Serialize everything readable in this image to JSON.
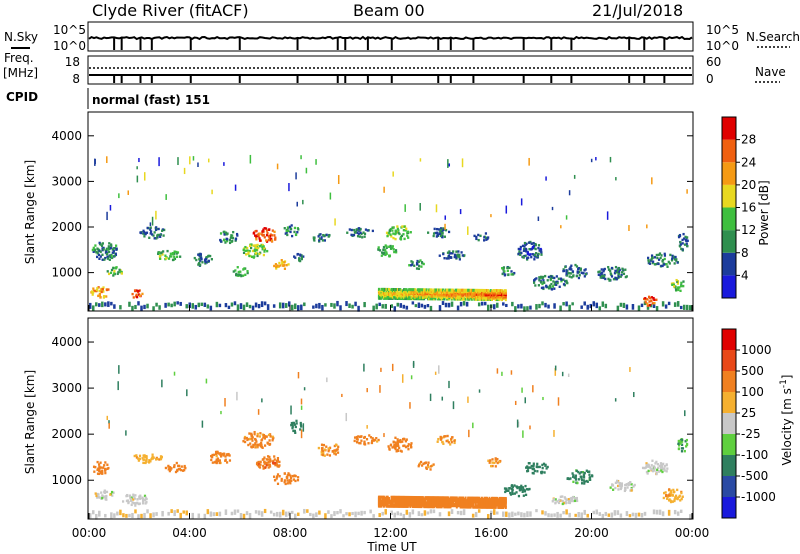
{
  "header": {
    "title": "Clyde River (fitACF)",
    "beam": "Beam 00",
    "date": "21/Jul/2018"
  },
  "strip1": {
    "left_label": "N.Sky",
    "right_label": "N.Search",
    "left_ticks": [
      "10^5",
      "10^0"
    ],
    "right_ticks": [
      "10^5",
      "10^0"
    ]
  },
  "strip2": {
    "left_label": "Freq.",
    "left_unit": "[MHz]",
    "right_label": "Nave",
    "left_ticks": [
      "18",
      "8"
    ],
    "right_ticks": [
      "60",
      "0"
    ]
  },
  "cpid": {
    "label": "CPID",
    "value": "normal (fast) 151"
  },
  "colors": {
    "power": [
      "#1a1adc",
      "#1c3c9c",
      "#2f8f4f",
      "#3fbf3f",
      "#e8d820",
      "#f59a14",
      "#f06010",
      "#e00000"
    ],
    "velocity": [
      "#1a1adc",
      "#2a4aa4",
      "#2f7f5f",
      "#5fcf3f",
      "#c8c8c8",
      "#f5b030",
      "#f08020",
      "#e84818",
      "#e00000"
    ]
  },
  "chart_data": [
    {
      "type": "heatmap",
      "name": "power",
      "ylabel": "Slant Range [km]",
      "ylim": [
        180,
        4500
      ],
      "yticks": [
        1000,
        2000,
        3000,
        4000
      ],
      "xlim": [
        0,
        24
      ],
      "colorbar": {
        "label": "Power [dB]",
        "range": [
          0,
          32
        ],
        "ticks": [
          "28",
          "24",
          "20",
          "16",
          "12",
          "8",
          "4"
        ]
      },
      "blobs": [
        {
          "t": 0.4,
          "r": 600,
          "dt": 0.7,
          "dr": 250,
          "v": 22
        },
        {
          "t": 0.6,
          "r": 1500,
          "dt": 1.0,
          "dr": 400,
          "v": 9
        },
        {
          "t": 1.0,
          "r": 1050,
          "dt": 0.6,
          "dr": 200,
          "v": 14
        },
        {
          "t": 1.9,
          "r": 550,
          "dt": 0.5,
          "dr": 180,
          "v": 27
        },
        {
          "t": 2.5,
          "r": 1900,
          "dt": 1.0,
          "dr": 250,
          "v": 8
        },
        {
          "t": 3.1,
          "r": 1400,
          "dt": 1.0,
          "dr": 200,
          "v": 13
        },
        {
          "t": 4.5,
          "r": 1300,
          "dt": 0.7,
          "dr": 300,
          "v": 8
        },
        {
          "t": 5.5,
          "r": 1800,
          "dt": 0.8,
          "dr": 250,
          "v": 10
        },
        {
          "t": 6.0,
          "r": 1050,
          "dt": 0.6,
          "dr": 200,
          "v": 12
        },
        {
          "t": 6.6,
          "r": 1500,
          "dt": 1.0,
          "dr": 300,
          "v": 15
        },
        {
          "t": 7.0,
          "r": 1850,
          "dt": 1.0,
          "dr": 300,
          "v": 27
        },
        {
          "t": 7.6,
          "r": 1200,
          "dt": 0.6,
          "dr": 200,
          "v": 20
        },
        {
          "t": 8.0,
          "r": 1950,
          "dt": 0.6,
          "dr": 250,
          "v": 10
        },
        {
          "t": 8.3,
          "r": 1350,
          "dt": 0.5,
          "dr": 180,
          "v": 8
        },
        {
          "t": 9.2,
          "r": 1800,
          "dt": 0.7,
          "dr": 200,
          "v": 8
        },
        {
          "t": 10.7,
          "r": 1900,
          "dt": 1.2,
          "dr": 200,
          "v": 8
        },
        {
          "t": 11.8,
          "r": 1500,
          "dt": 0.8,
          "dr": 250,
          "v": 12
        },
        {
          "t": 12.3,
          "r": 1900,
          "dt": 1.0,
          "dr": 300,
          "v": 14
        },
        {
          "t": 13.0,
          "r": 1200,
          "dt": 0.6,
          "dr": 200,
          "v": 9
        },
        {
          "t": 13.9,
          "r": 1900,
          "dt": 0.9,
          "dr": 200,
          "v": 8
        },
        {
          "t": 14.4,
          "r": 1400,
          "dt": 1.0,
          "dr": 200,
          "v": 8
        },
        {
          "t": 15.6,
          "r": 1800,
          "dt": 0.6,
          "dr": 200,
          "v": 8
        },
        {
          "t": 16.6,
          "r": 1050,
          "dt": 0.6,
          "dr": 200,
          "v": 10
        },
        {
          "t": 17.5,
          "r": 1500,
          "dt": 1.0,
          "dr": 400,
          "v": 7
        },
        {
          "t": 18.3,
          "r": 800,
          "dt": 1.4,
          "dr": 300,
          "v": 9
        },
        {
          "t": 19.3,
          "r": 1050,
          "dt": 1.0,
          "dr": 300,
          "v": 8
        },
        {
          "t": 20.8,
          "r": 1000,
          "dt": 1.2,
          "dr": 300,
          "v": 8
        },
        {
          "t": 22.3,
          "r": 400,
          "dt": 0.6,
          "dr": 200,
          "v": 26
        },
        {
          "t": 22.8,
          "r": 1300,
          "dt": 1.2,
          "dr": 300,
          "v": 9
        },
        {
          "t": 23.4,
          "r": 750,
          "dt": 0.6,
          "dr": 250,
          "v": 14
        },
        {
          "t": 23.6,
          "r": 1700,
          "dt": 0.4,
          "dr": 400,
          "v": 8
        }
      ],
      "band": {
        "t0": 11.5,
        "t1": 16.6,
        "r": 550,
        "dr": 220,
        "v0": 20,
        "v1": 28
      }
    },
    {
      "type": "heatmap",
      "name": "velocity",
      "ylabel": "Slant Range [km]",
      "ylim": [
        180,
        4500
      ],
      "yticks": [
        1000,
        2000,
        3000,
        4000
      ],
      "xlim": [
        0,
        24
      ],
      "xticks": [
        "00:00",
        "04:00",
        "08:00",
        "12:00",
        "16:00",
        "20:00",
        "00:00"
      ],
      "xlabel": "Time UT",
      "colorbar": {
        "label": "Velocity [m s^-1]",
        "ticks": [
          "1000",
          "500",
          "100",
          "25",
          "-25",
          "-100",
          "-500",
          "-1000"
        ]
      },
      "blobs": [
        {
          "t": 0.4,
          "r": 1300,
          "dt": 0.7,
          "dr": 300,
          "v": -200
        },
        {
          "t": 0.6,
          "r": 700,
          "dt": 0.8,
          "dr": 200,
          "v": 0
        },
        {
          "t": 1.8,
          "r": 600,
          "dt": 1.0,
          "dr": 250,
          "v": 0
        },
        {
          "t": 2.3,
          "r": 1500,
          "dt": 1.2,
          "dr": 200,
          "v": -80
        },
        {
          "t": 3.4,
          "r": 1300,
          "dt": 0.8,
          "dr": 200,
          "v": -200
        },
        {
          "t": 5.2,
          "r": 1500,
          "dt": 0.8,
          "dr": 300,
          "v": -150
        },
        {
          "t": 6.7,
          "r": 1900,
          "dt": 1.2,
          "dr": 350,
          "v": -150
        },
        {
          "t": 7.1,
          "r": 1400,
          "dt": 1.0,
          "dr": 300,
          "v": -400
        },
        {
          "t": 7.8,
          "r": 1050,
          "dt": 1.0,
          "dr": 250,
          "v": -200
        },
        {
          "t": 8.2,
          "r": 2200,
          "dt": 0.4,
          "dr": 300,
          "v": 200
        },
        {
          "t": 9.5,
          "r": 1700,
          "dt": 0.8,
          "dr": 300,
          "v": -100
        },
        {
          "t": 11.0,
          "r": 1900,
          "dt": 1.0,
          "dr": 200,
          "v": -150
        },
        {
          "t": 12.3,
          "r": 1800,
          "dt": 1.0,
          "dr": 300,
          "v": -200
        },
        {
          "t": 13.4,
          "r": 1350,
          "dt": 0.7,
          "dr": 200,
          "v": -150
        },
        {
          "t": 14.2,
          "r": 1900,
          "dt": 0.8,
          "dr": 200,
          "v": -100
        },
        {
          "t": 16.1,
          "r": 1400,
          "dt": 0.6,
          "dr": 200,
          "v": -100
        },
        {
          "t": 17.0,
          "r": 800,
          "dt": 1.0,
          "dr": 250,
          "v": 200
        },
        {
          "t": 17.8,
          "r": 1300,
          "dt": 1.0,
          "dr": 250,
          "v": 300
        },
        {
          "t": 18.8,
          "r": 600,
          "dt": 1.2,
          "dr": 200,
          "v": 0
        },
        {
          "t": 19.5,
          "r": 1100,
          "dt": 1.0,
          "dr": 300,
          "v": 150
        },
        {
          "t": 21.2,
          "r": 900,
          "dt": 1.0,
          "dr": 250,
          "v": 0
        },
        {
          "t": 22.5,
          "r": 1300,
          "dt": 1.0,
          "dr": 300,
          "v": 0
        },
        {
          "t": 23.2,
          "r": 700,
          "dt": 0.8,
          "dr": 300,
          "v": -80
        },
        {
          "t": 23.6,
          "r": 1800,
          "dt": 0.4,
          "dr": 300,
          "v": 100
        }
      ],
      "band": {
        "t0": 11.5,
        "t1": 16.6,
        "r": 550,
        "dr": 220,
        "v0": -250,
        "v1": -250
      }
    }
  ]
}
